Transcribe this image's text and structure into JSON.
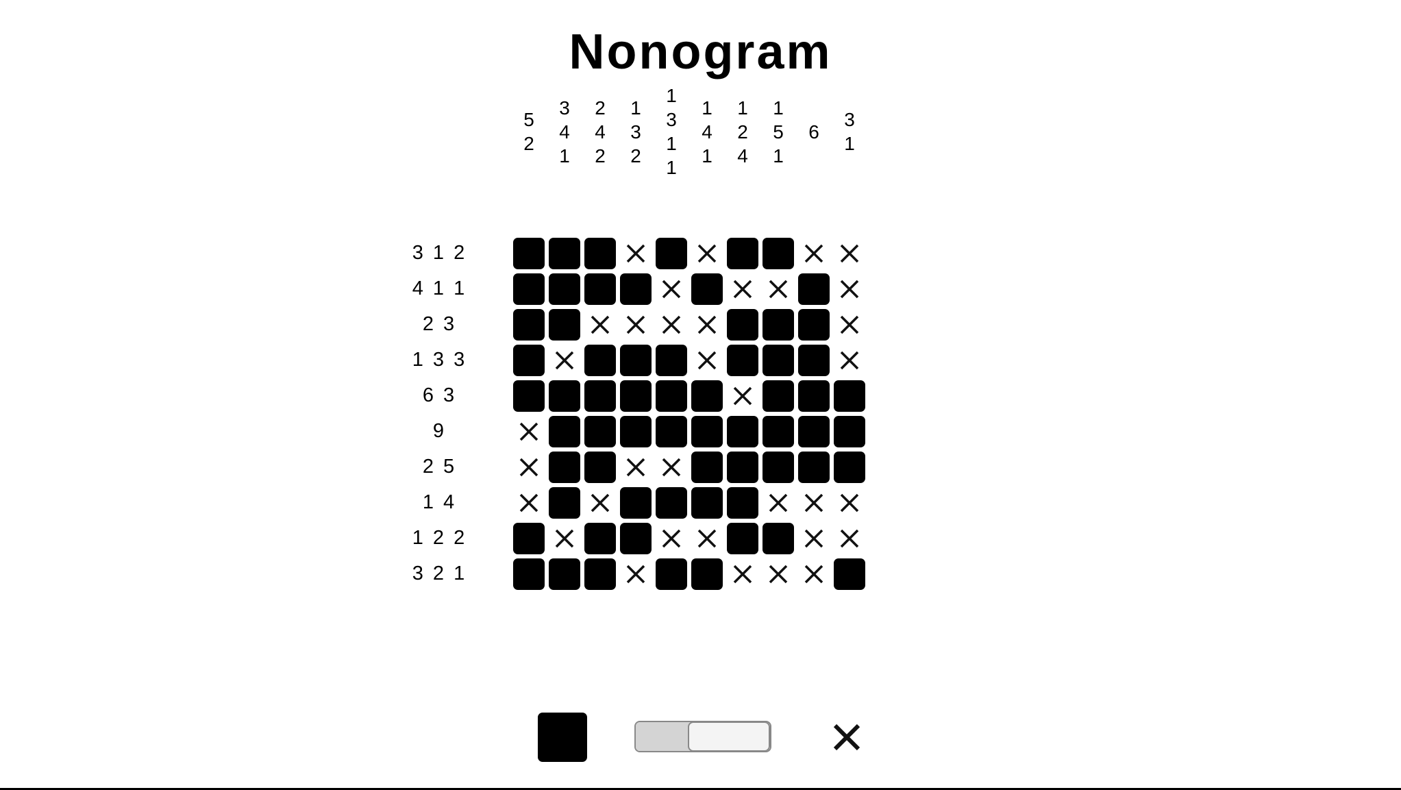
{
  "title": "Nonogram",
  "column_clues": [
    [
      "5",
      "2"
    ],
    [
      "3",
      "4",
      "1"
    ],
    [
      "2",
      "4",
      "2"
    ],
    [
      "1",
      "3",
      "2"
    ],
    [
      "1",
      "3",
      "1",
      "1"
    ],
    [
      "1",
      "4",
      "1"
    ],
    [
      "1",
      "2",
      "4"
    ],
    [
      "1",
      "5",
      "1"
    ],
    [
      "6"
    ],
    [
      "3",
      "1"
    ]
  ],
  "row_clues": [
    "3 1 2",
    "4 1 1",
    "2 3",
    "1 3 3",
    "6 3",
    "9",
    "2 5",
    "1 4",
    "1 2 2",
    "3 2 1"
  ],
  "grid": [
    "###x#x##xx",
    "####x#xx#x",
    "##xxxx###x",
    "#x###x###x",
    "######x###",
    "x#########",
    "x##xx#####",
    "x#x####xxx",
    "#x##xx##xx",
    "###x##xxx#"
  ],
  "cell_legend": {
    "#": "filled",
    "x": "crossed"
  },
  "colors": {
    "filled": "#000000",
    "cross": "#111111",
    "background": "#ffffff"
  },
  "controls": {
    "fill_mode_icon": "filled-square-icon",
    "mode_toggle_value": 0.4,
    "cross_mode_icon": "cross-icon"
  }
}
